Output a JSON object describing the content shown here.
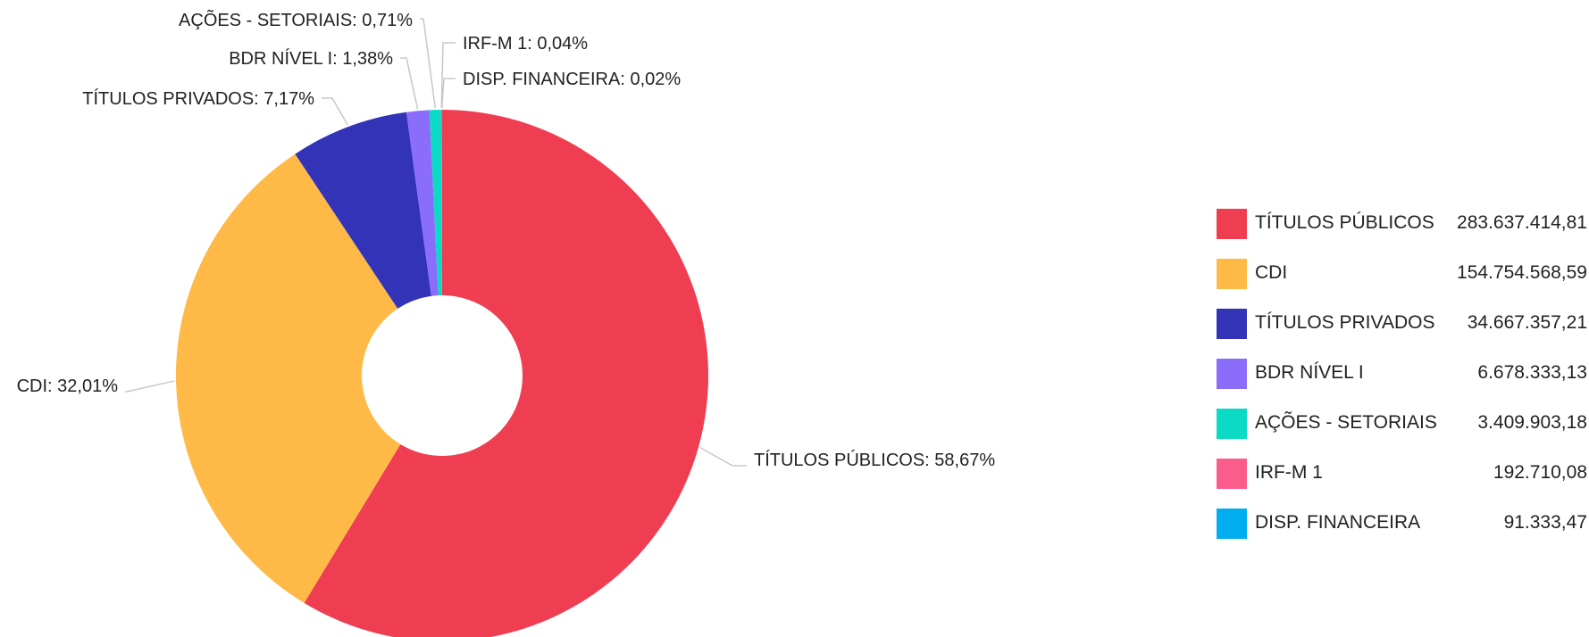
{
  "chart_data": {
    "type": "pie",
    "variant": "donut",
    "categories": [
      "TÍTULOS PÚBLICOS",
      "CDI",
      "TÍTULOS PRIVADOS",
      "BDR NÍVEL I",
      "AÇÕES - SETORIAIS",
      "IRF-M 1",
      "DISP. FINANCEIRA"
    ],
    "values": [
      283637414.81,
      154754568.59,
      34667357.21,
      6678333.13,
      3409903.18,
      192710.08,
      91333.47
    ],
    "value_labels": [
      "283.637.414,81",
      "154.754.568,59",
      "34.667.357,21",
      "6.678.333,13",
      "3.409.903,18",
      "192.710,08",
      "91.333,47"
    ],
    "percent_labels": [
      "58,67%",
      "32,01%",
      "7,17%",
      "1,38%",
      "0,71%",
      "0,04%",
      "0,02%"
    ],
    "colors": [
      "#ef3d52",
      "#ffb946",
      "#3333b8",
      "#8a6dfb",
      "#0bdbc4",
      "#fb5c8c",
      "#00aef0"
    ],
    "legend_position": "right",
    "start_angle_deg": 0,
    "direction": "clockwise"
  }
}
